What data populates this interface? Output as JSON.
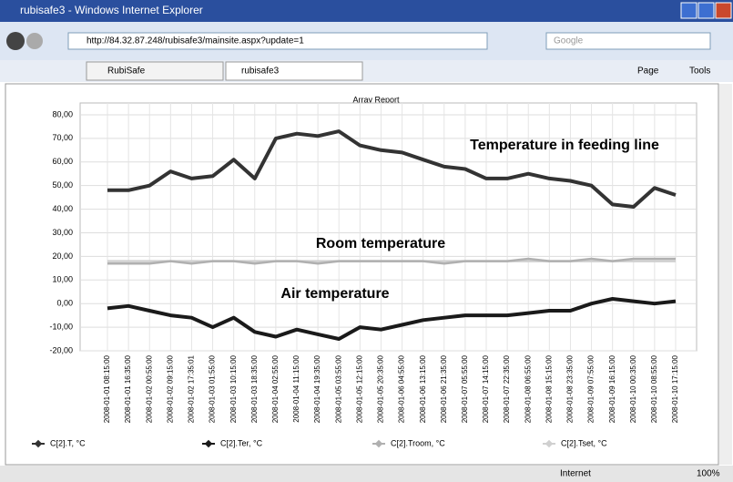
{
  "window": {
    "title": "rubisafe3 - Windows Internet Explorer",
    "url": "http://84.32.87.248/rubisafe3/mainsite.aspx?update=1",
    "search": "Google",
    "tabs": [
      "RubiSafe",
      "rubisafe3"
    ],
    "menus": [
      "Page",
      "Tools"
    ],
    "zone": "Internet",
    "zoom": "100%"
  },
  "chart_data": {
    "type": "line",
    "title": "Array Report",
    "categories": [
      "2008-01-01 08:15:00",
      "2008-01-01 16:35:00",
      "2008-01-02 00:55:00",
      "2008-01-02 09:15:00",
      "2008-01-02 17:35:01",
      "2008-01-03 01:55:00",
      "2008-01-03 10:15:00",
      "2008-01-03 18:35:00",
      "2008-01-04 02:55:00",
      "2008-01-04 11:15:00",
      "2008-01-04 19:35:00",
      "2008-01-05 03:55:00",
      "2008-01-05 12:15:00",
      "2008-01-05 20:35:00",
      "2008-01-06 04:55:00",
      "2008-01-06 13:15:00",
      "2008-01-06 21:35:00",
      "2008-01-07 05:55:00",
      "2008-01-07 14:15:00",
      "2008-01-07 22:35:00",
      "2008-01-08 06:55:00",
      "2008-01-08 15:15:00",
      "2008-01-08 23:35:00",
      "2008-01-09 07:55:00",
      "2008-01-09 16:15:00",
      "2008-01-10 00:35:00",
      "2008-01-10 08:55:00",
      "2008-01-10 17:15:00"
    ],
    "series": [
      {
        "name": "C[2].T, °C",
        "color": "#333333",
        "values": [
          48,
          48,
          50,
          56,
          53,
          54,
          61,
          53,
          70,
          72,
          71,
          73,
          67,
          65,
          64,
          61,
          58,
          57,
          53,
          53,
          55,
          53,
          52,
          50,
          42,
          41,
          49,
          46
        ]
      },
      {
        "name": "C[2].Ter, °C",
        "color": "#1a1a1a",
        "values": [
          -2,
          -1,
          -3,
          -5,
          -6,
          -10,
          -6,
          -12,
          -14,
          -11,
          -13,
          -15,
          -10,
          -11,
          -9,
          -7,
          -6,
          -5,
          -5,
          -5,
          -4,
          -3,
          -3,
          0,
          2,
          1,
          0,
          1
        ]
      },
      {
        "name": "C[2].Troom, °C",
        "color": "#b0b0b0",
        "values": [
          17,
          17,
          17,
          18,
          17,
          18,
          18,
          17,
          18,
          18,
          17,
          18,
          18,
          18,
          18,
          18,
          17,
          18,
          18,
          18,
          19,
          18,
          18,
          19,
          18,
          19,
          19,
          19
        ]
      },
      {
        "name": "C[2].Tset, °C",
        "color": "#d0d0d0",
        "values": [
          18,
          18,
          18,
          18,
          18,
          18,
          18,
          18,
          18,
          18,
          18,
          18,
          18,
          18,
          18,
          18,
          18,
          18,
          18,
          18,
          18,
          18,
          18,
          18,
          18,
          18,
          18,
          18
        ]
      }
    ],
    "annotations": [
      "Temperature in feeding line",
      "Room temperature",
      "Air temperature"
    ],
    "ylim": [
      -20,
      85
    ],
    "yticks": [
      {
        "value": -20,
        "label": "-20,00"
      },
      {
        "value": -10,
        "label": "-10,00"
      },
      {
        "value": 0,
        "label": "0,00"
      },
      {
        "value": 10,
        "label": "10,00"
      },
      {
        "value": 20,
        "label": "20,00"
      },
      {
        "value": 30,
        "label": "30,00"
      },
      {
        "value": 40,
        "label": "40,00"
      },
      {
        "value": 50,
        "label": "50,00"
      },
      {
        "value": 60,
        "label": "60,00"
      },
      {
        "value": 70,
        "label": "70,00"
      },
      {
        "value": 80,
        "label": "80,00"
      }
    ],
    "grid": true
  }
}
